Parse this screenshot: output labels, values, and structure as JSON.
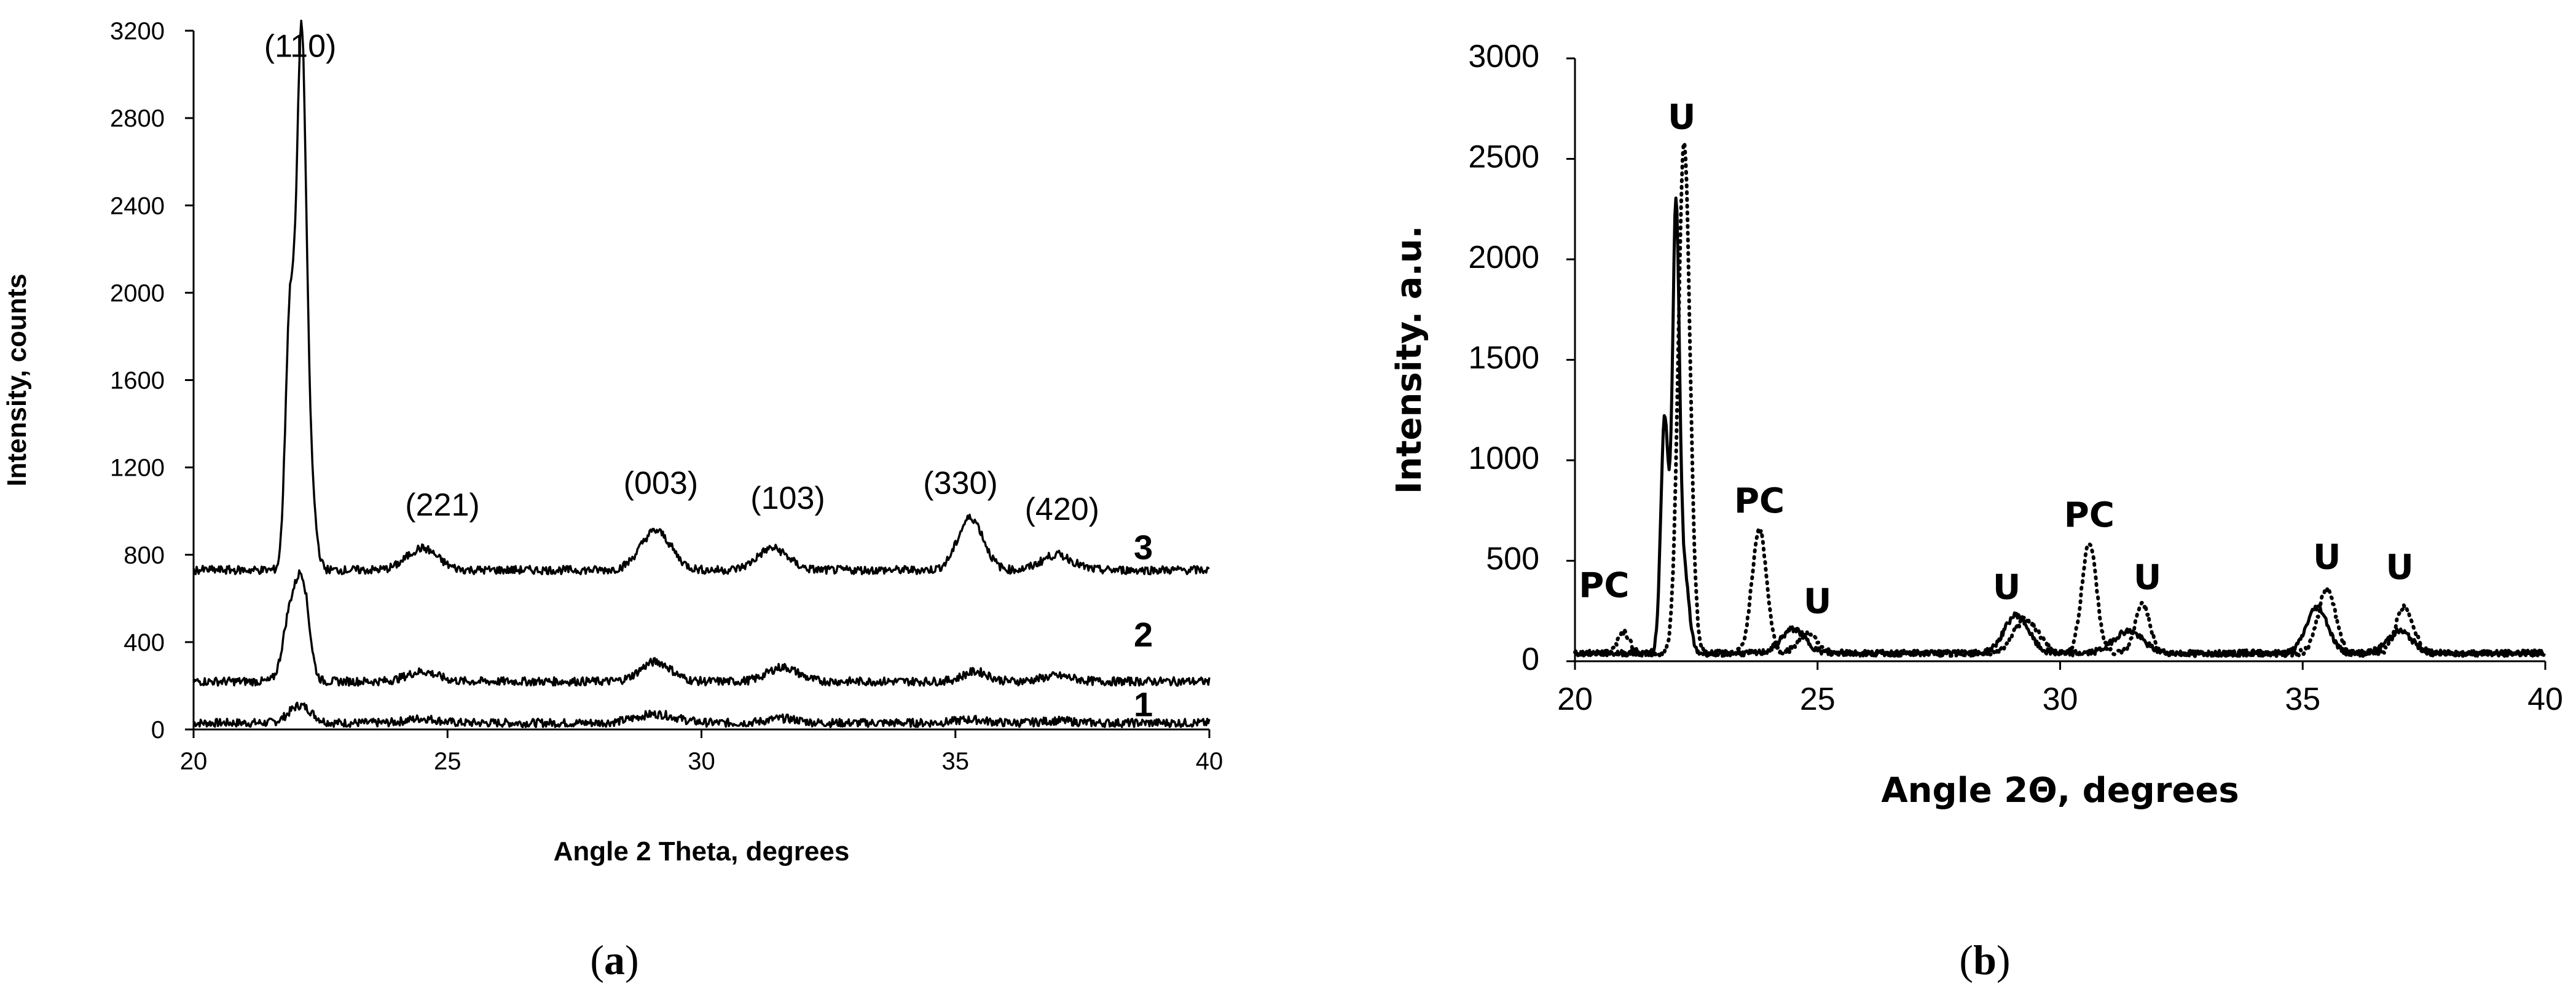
{
  "panels": {
    "a": {
      "open": "(",
      "letter": "a",
      "close": ")"
    },
    "b": {
      "open": "(",
      "letter": "b",
      "close": ")"
    }
  },
  "chart_data": [
    {
      "type": "line",
      "panel": "a",
      "xlabel": "Angle 2 Theta, degrees",
      "ylabel": "Intensity, counts",
      "xlim": [
        20,
        40
      ],
      "ylim": [
        0,
        3200
      ],
      "xticks": [
        20,
        25,
        30,
        35,
        40
      ],
      "yticks": [
        0,
        400,
        800,
        1200,
        1600,
        2000,
        2400,
        2800,
        3200
      ],
      "grid": false,
      "series": [
        {
          "name": "1",
          "baseline": 30,
          "peaks": [
            [
              22.1,
              80,
              0.22
            ],
            [
              24.5,
              20,
              0.3
            ],
            [
              29.1,
              40,
              0.4
            ],
            [
              31.6,
              20,
              0.3
            ],
            [
              35.3,
              15,
              0.3
            ],
            [
              37.0,
              10,
              0.3
            ]
          ]
        },
        {
          "name": "2",
          "baseline": 220,
          "peaks": [
            [
              21.9,
              300,
              0.14
            ],
            [
              22.15,
              420,
              0.13
            ],
            [
              24.5,
              45,
              0.3
            ],
            [
              29.1,
              90,
              0.3
            ],
            [
              31.6,
              65,
              0.3
            ],
            [
              35.4,
              45,
              0.25
            ],
            [
              37.0,
              25,
              0.3
            ]
          ]
        },
        {
          "name": "3",
          "baseline": 730,
          "peaks": [
            [
              21.9,
              1180,
              0.09
            ],
            [
              22.12,
              2170,
              0.09
            ],
            [
              22.25,
              500,
              0.12
            ],
            [
              24.5,
              100,
              0.3
            ],
            [
              29.1,
              180,
              0.3
            ],
            [
              31.4,
              100,
              0.3
            ],
            [
              35.3,
              240,
              0.25
            ],
            [
              37.0,
              70,
              0.3
            ]
          ]
        }
      ],
      "annotations": [
        {
          "text": "(110)",
          "x": 22.1,
          "y": 3080
        },
        {
          "text": "(221)",
          "x": 24.9,
          "y": 980
        },
        {
          "text": "(003)",
          "x": 29.2,
          "y": 1080
        },
        {
          "text": "(103)",
          "x": 31.7,
          "y": 1010
        },
        {
          "text": "(330)",
          "x": 35.1,
          "y": 1080
        },
        {
          "text": "(420)",
          "x": 37.1,
          "y": 960
        }
      ],
      "curve_labels": [
        {
          "text": "3",
          "x": 38.7,
          "y": 780
        },
        {
          "text": "2",
          "x": 38.7,
          "y": 380
        },
        {
          "text": "1",
          "x": 38.7,
          "y": 60
        }
      ]
    },
    {
      "type": "line",
      "panel": "b",
      "xlabel": "Angle 2Θ, degrees",
      "ylabel": "Intensity. a.u.",
      "xlim": [
        20,
        40
      ],
      "ylim": [
        0,
        3000
      ],
      "xticks": [
        20,
        25,
        30,
        35,
        40
      ],
      "yticks": [
        0,
        500,
        1000,
        1500,
        2000,
        2500,
        3000
      ],
      "grid": false,
      "series": [
        {
          "style": "solid",
          "baseline": 40,
          "peaks": [
            [
              21.85,
              1180,
              0.08
            ],
            [
              22.08,
              2150,
              0.07
            ],
            [
              22.25,
              400,
              0.1
            ],
            [
              24.5,
              120,
              0.25
            ],
            [
              29.1,
              190,
              0.25
            ],
            [
              31.4,
              110,
              0.3
            ],
            [
              35.3,
              230,
              0.22
            ],
            [
              37.0,
              110,
              0.25
            ]
          ]
        },
        {
          "style": "dotted",
          "baseline": 40,
          "peaks": [
            [
              21.0,
              110,
              0.12
            ],
            [
              22.25,
              2550,
              0.12
            ],
            [
              23.8,
              620,
              0.15
            ],
            [
              24.8,
              100,
              0.2
            ],
            [
              29.3,
              170,
              0.25
            ],
            [
              30.6,
              550,
              0.15
            ],
            [
              31.7,
              250,
              0.15
            ],
            [
              35.5,
              320,
              0.18
            ],
            [
              37.1,
              230,
              0.18
            ]
          ]
        }
      ],
      "annotations": [
        {
          "text": "PC",
          "x": 20.6,
          "y": 320
        },
        {
          "text": "U",
          "x": 22.2,
          "y": 2650
        },
        {
          "text": "PC",
          "x": 23.8,
          "y": 740
        },
        {
          "text": "U",
          "x": 25.0,
          "y": 240
        },
        {
          "text": "U",
          "x": 28.9,
          "y": 310
        },
        {
          "text": "PC",
          "x": 30.6,
          "y": 670
        },
        {
          "text": "U",
          "x": 31.8,
          "y": 360
        },
        {
          "text": "U",
          "x": 35.5,
          "y": 460
        },
        {
          "text": "U",
          "x": 37.0,
          "y": 410
        }
      ]
    }
  ]
}
